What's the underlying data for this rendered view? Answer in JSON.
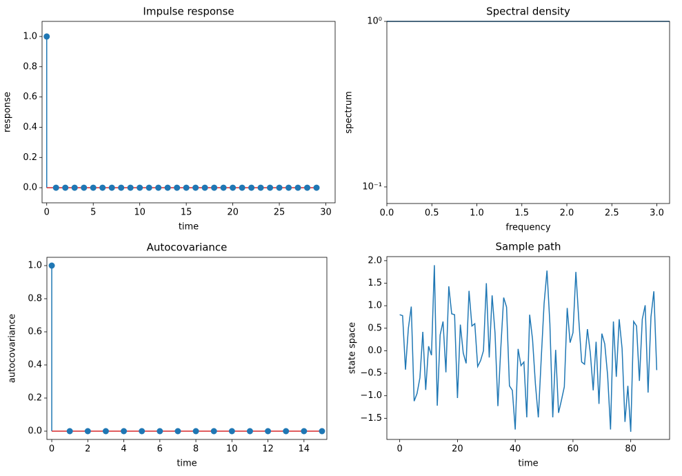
{
  "chart_data": [
    {
      "type": "stem",
      "title": "Impulse response",
      "xlabel": "time",
      "ylabel": "response",
      "color": "#1f77b4",
      "baseline_color": "#d62728",
      "x": [
        0,
        1,
        2,
        3,
        4,
        5,
        6,
        7,
        8,
        9,
        10,
        11,
        12,
        13,
        14,
        15,
        16,
        17,
        18,
        19,
        20,
        21,
        22,
        23,
        24,
        25,
        26,
        27,
        28,
        29
      ],
      "values": [
        1,
        0,
        0,
        0,
        0,
        0,
        0,
        0,
        0,
        0,
        0,
        0,
        0,
        0,
        0,
        0,
        0,
        0,
        0,
        0,
        0,
        0,
        0,
        0,
        0,
        0,
        0,
        0,
        0,
        0
      ],
      "xlim": [
        -0.5,
        31
      ],
      "ylim": [
        -0.1,
        1.1
      ],
      "xticks": [
        0,
        5,
        10,
        15,
        20,
        25,
        30
      ],
      "yticks": [
        {
          "value": 0,
          "label": "0.0"
        },
        0.2,
        0.4,
        0.6,
        0.8,
        {
          "value": 1,
          "label": "1.0"
        }
      ]
    },
    {
      "type": "line",
      "title": "Spectral density",
      "xlabel": "frequency",
      "ylabel": "spectrum",
      "color": "#1f77b4",
      "log_y": true,
      "x": [
        0,
        3.14159
      ],
      "values": [
        1,
        1
      ],
      "xlim": [
        0,
        3.14159
      ],
      "ylim": [
        0.0794,
        1
      ],
      "xticks": [
        {
          "value": 0,
          "label": "0.0"
        },
        0.5,
        {
          "value": 1,
          "label": "1.0"
        },
        1.5,
        {
          "value": 2,
          "label": "2.0"
        },
        2.5,
        {
          "value": 3,
          "label": "3.0"
        }
      ],
      "yticks": [
        {
          "value": 0.1,
          "label": "10⁻¹"
        },
        {
          "value": 1,
          "label": "10⁰"
        }
      ]
    },
    {
      "type": "stem",
      "title": "Autocovariance",
      "xlabel": "time",
      "ylabel": "autocovariance",
      "color": "#1f77b4",
      "baseline_color": "#d62728",
      "x": [
        0,
        1,
        2,
        3,
        4,
        5,
        6,
        7,
        8,
        9,
        10,
        11,
        12,
        13,
        14,
        15
      ],
      "values": [
        1,
        0,
        0,
        0,
        0,
        0,
        0,
        0,
        0,
        0,
        0,
        0,
        0,
        0,
        0,
        0
      ],
      "xlim": [
        -0.27,
        15.27
      ],
      "ylim": [
        -0.05,
        1.05
      ],
      "xticks": [
        0,
        2,
        4,
        6,
        8,
        10,
        12,
        14
      ],
      "yticks": [
        {
          "value": 0,
          "label": "0.0"
        },
        0.2,
        0.4,
        0.6,
        0.8,
        {
          "value": 1,
          "label": "1.0"
        }
      ]
    },
    {
      "type": "line",
      "title": "Sample path",
      "xlabel": "time",
      "ylabel": "state space",
      "color": "#1f77b4",
      "x": [
        0,
        1,
        2,
        3,
        4,
        5,
        6,
        7,
        8,
        9,
        10,
        11,
        12,
        13,
        14,
        15,
        16,
        17,
        18,
        19,
        20,
        21,
        22,
        23,
        24,
        25,
        26,
        27,
        28,
        29,
        30,
        31,
        32,
        33,
        34,
        35,
        36,
        37,
        38,
        39,
        40,
        41,
        42,
        43,
        44,
        45,
        46,
        47,
        48,
        49,
        50,
        51,
        52,
        53,
        54,
        55,
        56,
        57,
        58,
        59,
        60,
        61,
        62,
        63,
        64,
        65,
        66,
        67,
        68,
        69,
        70,
        71,
        72,
        73,
        74,
        75,
        76,
        77,
        78,
        79,
        80,
        81,
        82,
        83,
        84,
        85,
        86,
        87,
        88,
        89
      ],
      "values": [
        0.8,
        0.78,
        -0.42,
        0.5,
        0.98,
        -1.12,
        -0.95,
        -0.6,
        0.42,
        -0.87,
        0.1,
        -0.1,
        1.9,
        -1.22,
        0.35,
        0.65,
        -0.48,
        1.43,
        0.82,
        0.8,
        -1.05,
        0.58,
        -0.05,
        -0.28,
        1.33,
        0.55,
        0.6,
        -0.35,
        -0.22,
        0.0,
        1.5,
        -0.15,
        1.23,
        0.4,
        -1.23,
        0.05,
        1.18,
        0.97,
        -0.78,
        -0.88,
        -1.75,
        0.04,
        -0.33,
        -0.25,
        -1.48,
        0.8,
        0.25,
        -0.75,
        -1.48,
        -0.18,
        1.05,
        1.78,
        0.6,
        -1.48,
        0.02,
        -1.38,
        -1.1,
        -0.8,
        0.95,
        0.18,
        0.4,
        1.75,
        0.7,
        -0.25,
        -0.3,
        0.48,
        -0.05,
        -0.88,
        0.2,
        -1.18,
        0.38,
        0.15,
        -0.55,
        -1.75,
        0.65,
        -0.58,
        0.7,
        0.05,
        -1.58,
        -0.78,
        -1.8,
        0.65,
        0.55,
        -0.67,
        0.7,
        1.01,
        -0.93,
        0.75,
        1.32,
        -0.43
      ],
      "xlim": [
        -4.45,
        93.45
      ],
      "ylim": [
        -1.97,
        2.09
      ],
      "xticks": [
        0,
        20,
        40,
        60,
        80
      ],
      "yticks": [
        {
          "value": -1.5,
          "label": "−1.5"
        },
        {
          "value": -1,
          "label": "−1.0"
        },
        {
          "value": -0.5,
          "label": "−0.5"
        },
        {
          "value": 0,
          "label": "0.0"
        },
        0.5,
        {
          "value": 1,
          "label": "1.0"
        },
        1.5,
        {
          "value": 2,
          "label": "2.0"
        }
      ]
    }
  ]
}
